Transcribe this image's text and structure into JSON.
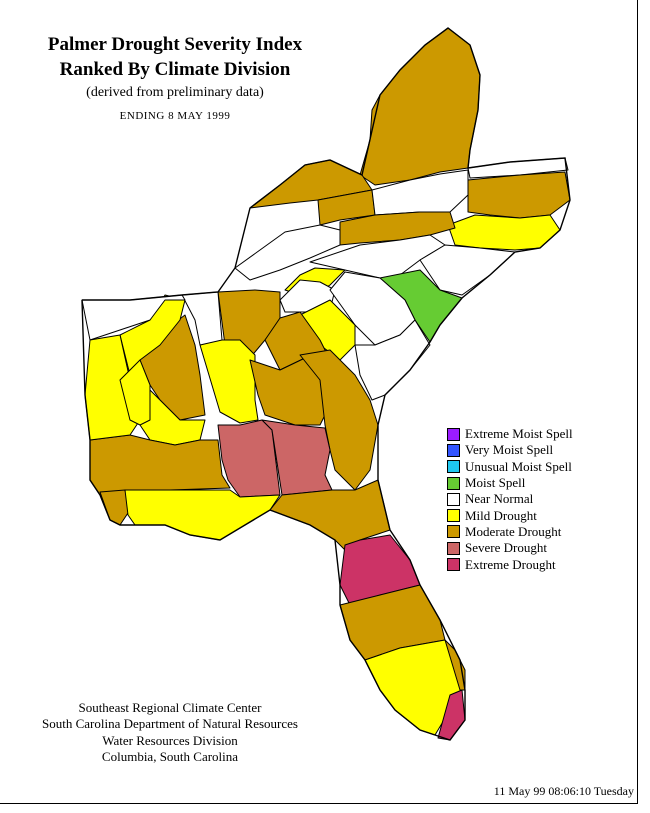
{
  "title": {
    "line1": "Palmer Drought Severity Index",
    "line2": "Ranked By Climate Division",
    "line3": "(derived from preliminary data)",
    "ending": "ENDING  8 MAY 1999"
  },
  "legend": [
    {
      "label": "Extreme Moist Spell",
      "color": "#9b1cff"
    },
    {
      "label": "Very Moist Spell",
      "color": "#3355ff"
    },
    {
      "label": "Unusual Moist Spell",
      "color": "#1ec8f0"
    },
    {
      "label": "Moist Spell",
      "color": "#66cc33"
    },
    {
      "label": "Near Normal",
      "color": "#ffffff"
    },
    {
      "label": "Mild Drought",
      "color": "#ffff00"
    },
    {
      "label": "Moderate Drought",
      "color": "#cc9900"
    },
    {
      "label": "Severe Drought",
      "color": "#cc6666"
    },
    {
      "label": "Extreme Drought",
      "color": "#cc3366"
    }
  ],
  "credits": [
    "Southeast Regional Climate Center",
    "South Carolina Department of Natural Resources",
    "Water Resources Division",
    "Columbia, South Carolina"
  ],
  "timestamp": "11 May 99 08:06:10 Tuesday"
}
